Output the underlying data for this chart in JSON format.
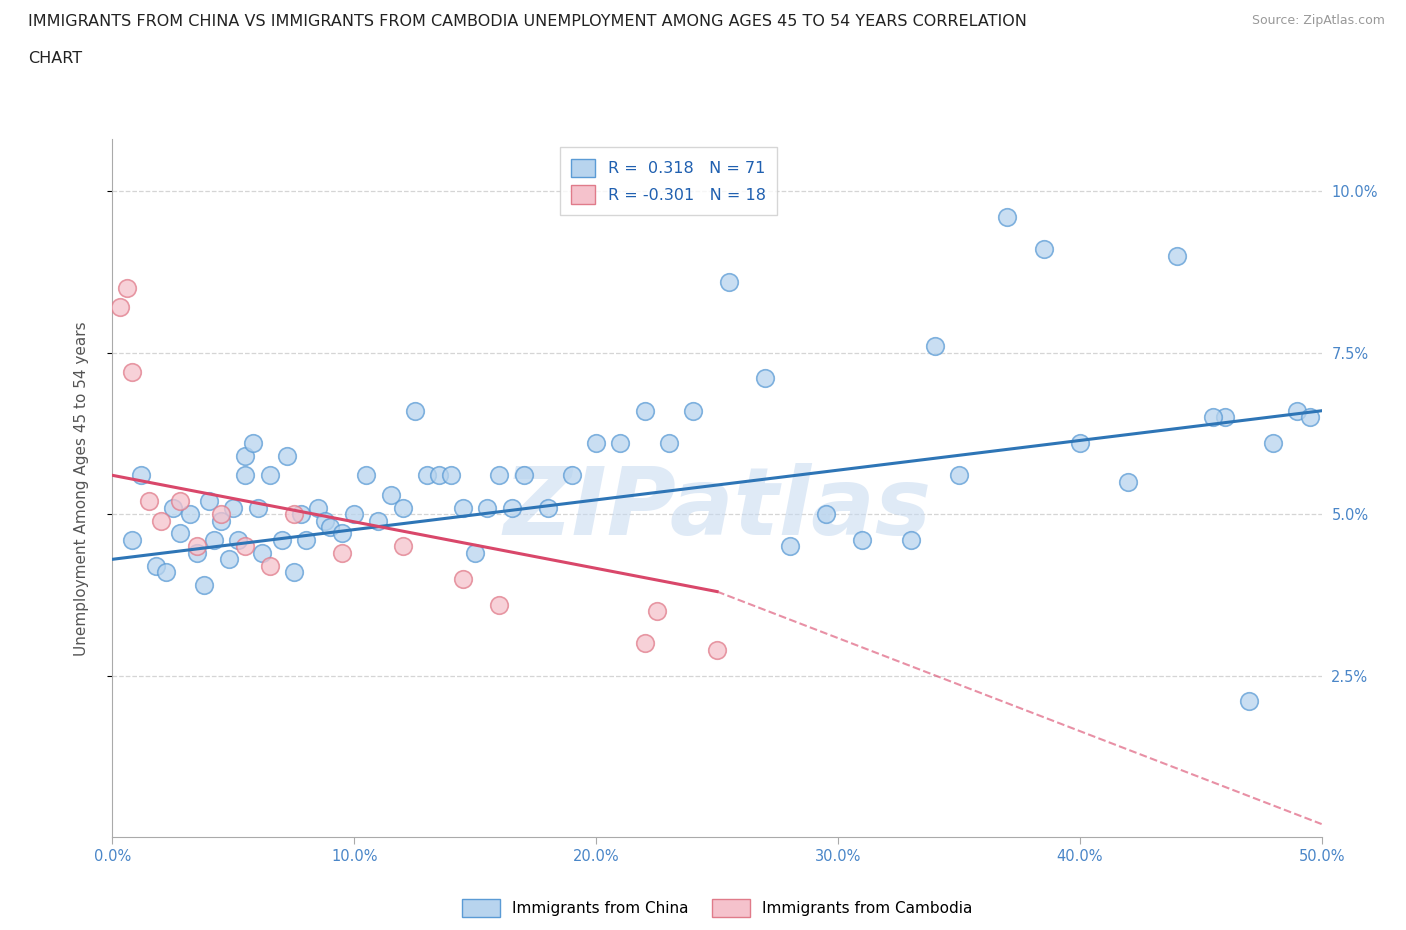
{
  "title_line1": "IMMIGRANTS FROM CHINA VS IMMIGRANTS FROM CAMBODIA UNEMPLOYMENT AMONG AGES 45 TO 54 YEARS CORRELATION",
  "title_line2": "CHART",
  "source": "Source: ZipAtlas.com",
  "ylabel": "Unemployment Among Ages 45 to 54 years",
  "xlim": [
    0,
    50
  ],
  "ylim": [
    0,
    10.8
  ],
  "yticks": [
    2.5,
    5.0,
    7.5,
    10.0
  ],
  "ytick_labels": [
    "2.5%",
    "5.0%",
    "7.5%",
    "10.0%"
  ],
  "xticks": [
    0,
    10,
    20,
    30,
    40,
    50
  ],
  "xtick_labels": [
    "0.0%",
    "10.0%",
    "20.0%",
    "30.0%",
    "40.0%",
    "50.0%"
  ],
  "legend_china": "Immigrants from China",
  "legend_cambodia": "Immigrants from Cambodia",
  "R_china": " 0.318",
  "N_china": "71",
  "R_cambodia": "-0.301",
  "N_cambodia": "18",
  "china_fill": "#b8d4ee",
  "china_edge": "#5b9bd5",
  "cambodia_fill": "#f5c2cc",
  "cambodia_edge": "#e07b8a",
  "china_line_color": "#2e75b6",
  "cambodia_line_color": "#d9476a",
  "china_scatter_x": [
    0.8,
    1.2,
    1.8,
    2.2,
    2.5,
    2.8,
    3.2,
    3.5,
    3.8,
    4.0,
    4.2,
    4.5,
    4.8,
    5.0,
    5.2,
    5.5,
    5.5,
    5.8,
    6.0,
    6.2,
    6.5,
    7.0,
    7.2,
    7.5,
    7.8,
    8.0,
    8.5,
    8.8,
    9.0,
    9.5,
    10.0,
    10.5,
    11.0,
    11.5,
    12.0,
    12.5,
    13.0,
    13.5,
    14.0,
    14.5,
    15.0,
    15.5,
    16.0,
    16.5,
    17.0,
    18.0,
    19.0,
    20.0,
    21.0,
    22.0,
    23.0,
    24.0,
    25.5,
    27.0,
    28.0,
    29.5,
    31.0,
    33.0,
    35.0,
    37.0,
    38.5,
    40.0,
    42.0,
    44.0,
    46.0,
    47.0,
    48.0,
    49.0,
    49.5,
    45.5,
    34.0
  ],
  "china_scatter_y": [
    4.6,
    5.6,
    4.2,
    4.1,
    5.1,
    4.7,
    5.0,
    4.4,
    3.9,
    5.2,
    4.6,
    4.9,
    4.3,
    5.1,
    4.6,
    5.9,
    5.6,
    6.1,
    5.1,
    4.4,
    5.6,
    4.6,
    5.9,
    4.1,
    5.0,
    4.6,
    5.1,
    4.9,
    4.8,
    4.7,
    5.0,
    5.6,
    4.9,
    5.3,
    5.1,
    6.6,
    5.6,
    5.6,
    5.6,
    5.1,
    4.4,
    5.1,
    5.6,
    5.1,
    5.6,
    5.1,
    5.6,
    6.1,
    6.1,
    6.6,
    6.1,
    6.6,
    8.6,
    7.1,
    4.5,
    5.0,
    4.6,
    4.6,
    5.6,
    9.6,
    9.1,
    6.1,
    5.5,
    9.0,
    6.5,
    2.1,
    6.1,
    6.6,
    6.5,
    6.5,
    7.6
  ],
  "cambodia_scatter_x": [
    0.3,
    0.6,
    0.8,
    1.5,
    2.0,
    2.8,
    3.5,
    4.5,
    5.5,
    6.5,
    7.5,
    9.5,
    12.0,
    14.5,
    16.0,
    22.0,
    25.0,
    22.5
  ],
  "cambodia_scatter_y": [
    8.2,
    8.5,
    7.2,
    5.2,
    4.9,
    5.2,
    4.5,
    5.0,
    4.5,
    4.2,
    5.0,
    4.4,
    4.5,
    4.0,
    3.6,
    3.0,
    2.9,
    3.5
  ],
  "china_reg_x0": 0.0,
  "china_reg_x1": 50.0,
  "china_reg_y0": 4.3,
  "china_reg_y1": 6.6,
  "cambodia_solid_x0": 0.0,
  "cambodia_solid_x1": 25.0,
  "cambodia_solid_y0": 5.6,
  "cambodia_solid_y1": 3.8,
  "cambodia_dash_x0": 25.0,
  "cambodia_dash_x1": 50.0,
  "cambodia_dash_y0": 3.8,
  "cambodia_dash_y1": 0.2,
  "background_color": "#ffffff",
  "grid_color": "#d5d5d5",
  "watermark_text": "ZIPatlas",
  "watermark_color": "#c5d9f0",
  "watermark_alpha": 0.55
}
